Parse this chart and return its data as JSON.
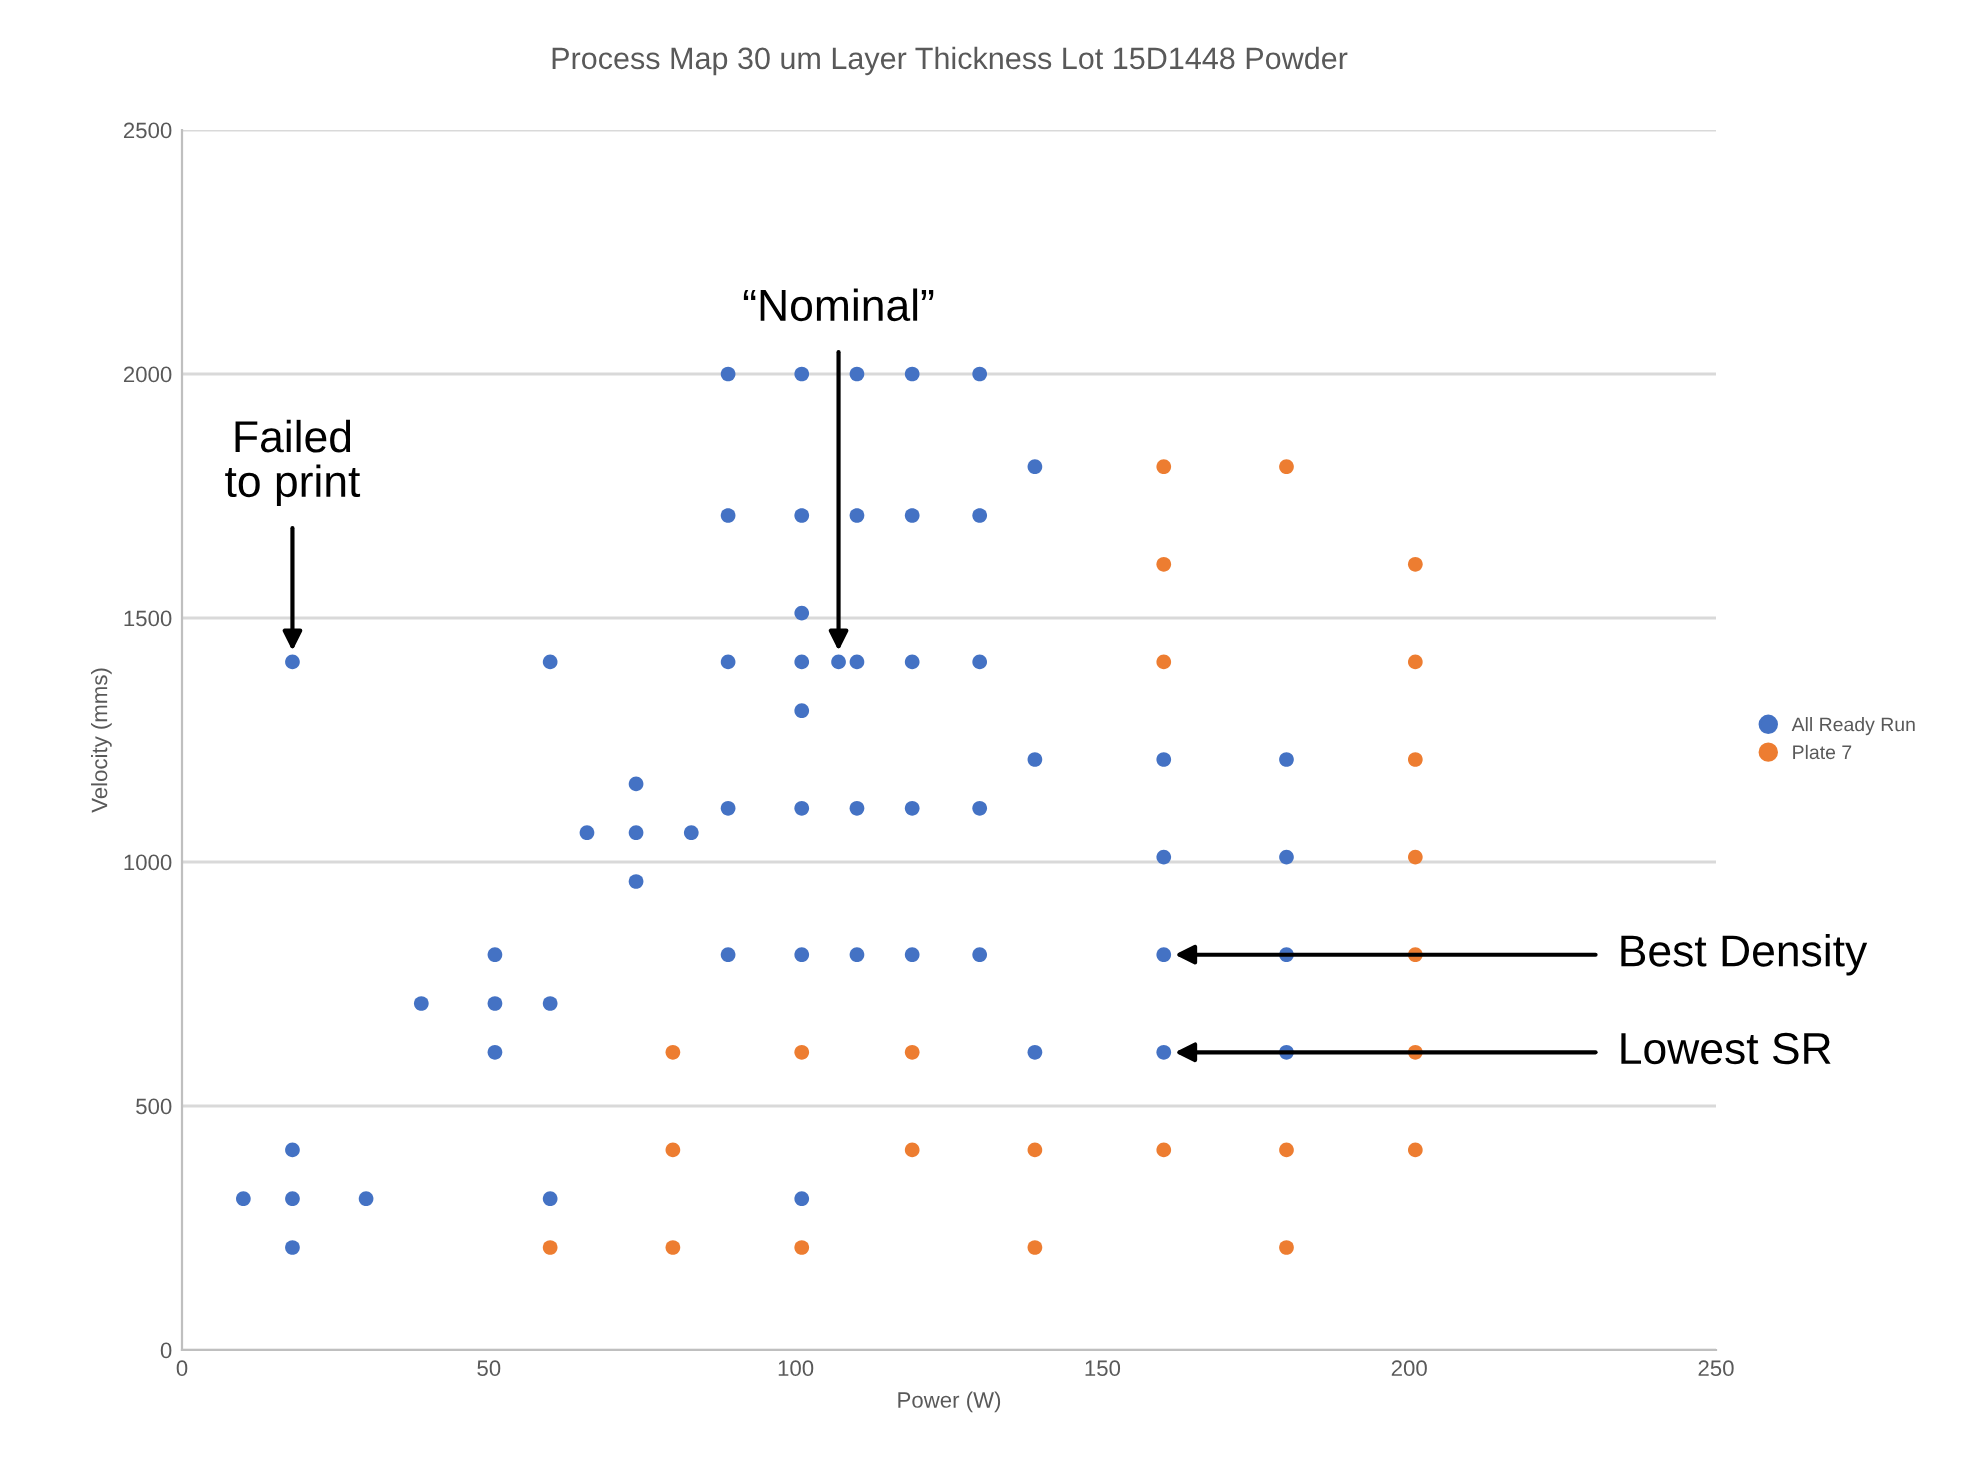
{
  "chart_data": {
    "type": "scatter",
    "title": "Process Map 30 um Layer Thickness Lot 15D1448 Powder",
    "xlabel": "Power (W)",
    "ylabel": "Velocity (mms)",
    "xlim": [
      0,
      250
    ],
    "xticks": [
      0,
      50,
      100,
      150,
      200,
      250
    ],
    "ylim": [
      0,
      2500
    ],
    "yticks": [
      0,
      500,
      1000,
      1500,
      2000,
      2500
    ],
    "grid": "y",
    "legend": "right",
    "marker": "circle",
    "series": [
      {
        "name": "All Ready Run",
        "color": "#4472c4",
        "x": [
          89,
          101,
          110,
          119,
          130,
          139,
          89,
          101,
          110,
          119,
          130,
          101,
          18,
          60,
          89,
          101,
          107,
          110,
          119,
          130,
          101,
          139,
          160,
          180,
          74,
          89,
          101,
          110,
          119,
          130,
          66,
          74,
          83,
          160,
          180,
          74,
          51,
          89,
          101,
          110,
          119,
          130,
          160,
          180,
          39,
          51,
          60,
          51,
          139,
          160,
          180,
          18,
          10,
          18,
          30,
          60,
          101,
          18
        ],
        "values": [
          2000,
          2000,
          2000,
          2000,
          2000,
          1810,
          1710,
          1710,
          1710,
          1710,
          1710,
          1510,
          1410,
          1410,
          1410,
          1410,
          1410,
          1410,
          1410,
          1410,
          1310,
          1210,
          1210,
          1210,
          1160,
          1110,
          1110,
          1110,
          1110,
          1110,
          1060,
          1060,
          1060,
          1010,
          1010,
          960,
          810,
          810,
          810,
          810,
          810,
          810,
          810,
          810,
          710,
          710,
          710,
          610,
          610,
          610,
          610,
          410,
          310,
          310,
          310,
          310,
          310,
          210
        ]
      },
      {
        "name": "Plate 7",
        "color": "#ed7d31",
        "x": [
          160,
          180,
          160,
          201,
          160,
          201,
          201,
          201,
          201,
          80,
          101,
          119,
          201,
          80,
          119,
          139,
          160,
          180,
          201,
          60,
          80,
          101,
          139,
          180
        ],
        "values": [
          1810,
          1810,
          1610,
          1610,
          1410,
          1410,
          1210,
          1010,
          810,
          610,
          610,
          610,
          610,
          410,
          410,
          410,
          410,
          410,
          410,
          210,
          210,
          210,
          210,
          210
        ]
      }
    ],
    "annotations": [
      {
        "text": "Failed\nto print",
        "x": 18,
        "y": 1410
      },
      {
        "text": "“Nominal”",
        "x": 107,
        "y": 1410
      },
      {
        "text": "Best Density",
        "x": 160,
        "y": 810
      },
      {
        "text": "Lowest SR",
        "x": 160,
        "y": 610
      }
    ]
  }
}
